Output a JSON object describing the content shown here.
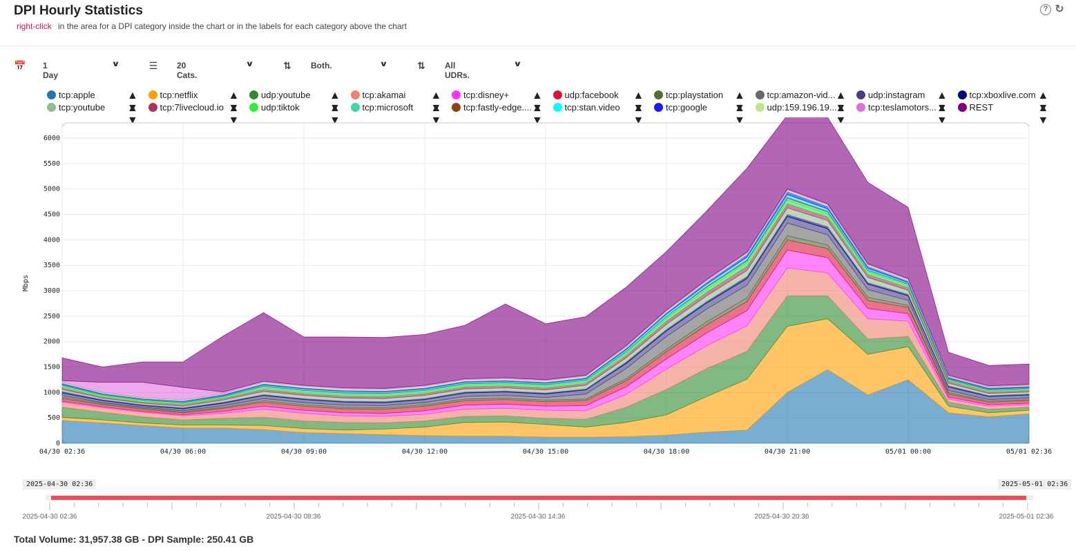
{
  "header": {
    "title": "DPI Hourly Statistics",
    "hint_action": "right-click",
    "hint_text": "in the area for a DPI category inside the chart or in the labels for each category above the chart"
  },
  "controls": {
    "period": "1 Day",
    "categories": "20 Cats.",
    "direction": "Both.",
    "udrs": "All UDRs."
  },
  "legend": [
    {
      "name": "tcp:apple",
      "color": "#1f77b4"
    },
    {
      "name": "tcp:netflix",
      "color": "#ff9f00"
    },
    {
      "name": "udp:youtube",
      "color": "#2e8b2e"
    },
    {
      "name": "tcp:akamai",
      "color": "#f08070"
    },
    {
      "name": "tcp:disney+",
      "color": "#ff33ff"
    },
    {
      "name": "udp:facebook",
      "color": "#dc143c"
    },
    {
      "name": "tcp:playstation",
      "color": "#556b2f"
    },
    {
      "name": "tcp:amazon-vid...",
      "color": "#696969"
    },
    {
      "name": "udp:instagram",
      "color": "#483d8b"
    },
    {
      "name": "tcp:xboxlive.com",
      "color": "#000080"
    },
    {
      "name": "tcp:youtube",
      "color": "#8fbc8f"
    },
    {
      "name": "tcp:7livecloud.io",
      "color": "#b03060"
    },
    {
      "name": "udp:tiktok",
      "color": "#32ee32"
    },
    {
      "name": "tcp:microsoft",
      "color": "#3cd8a0"
    },
    {
      "name": "tcp:fastly-edge....",
      "color": "#8b4513"
    },
    {
      "name": "tcp:stan.video",
      "color": "#00ffff"
    },
    {
      "name": "tcp:google",
      "color": "#1a1aff"
    },
    {
      "name": "udp:159.196.19...",
      "color": "#b8e986"
    },
    {
      "name": "tcp:teslamotors...",
      "color": "#e070e0"
    },
    {
      "name": "REST",
      "color": "#800080"
    }
  ],
  "chart_data": {
    "type": "area",
    "stacked": true,
    "ylabel": "Mbps",
    "ylim": [
      0,
      6300
    ],
    "yticks": [
      0,
      500,
      1000,
      1500,
      2000,
      2500,
      3000,
      3500,
      4000,
      4500,
      5000,
      5500,
      6000
    ],
    "xticks": [
      "04/30 02:36",
      "04/30 06:00",
      "04/30 09:00",
      "04/30 12:00",
      "04/30 15:00",
      "04/30 18:00",
      "04/30 21:00",
      "05/01 00:00",
      "05/01 02:36"
    ],
    "x": [
      "04/30 02:36",
      "04/30 03:36",
      "04/30 04:36",
      "04/30 05:36",
      "04/30 06:36",
      "04/30 07:36",
      "04/30 08:36",
      "04/30 09:36",
      "04/30 10:36",
      "04/30 11:36",
      "04/30 12:36",
      "04/30 13:36",
      "04/30 14:36",
      "04/30 15:36",
      "04/30 16:36",
      "04/30 17:36",
      "04/30 18:36",
      "04/30 19:36",
      "04/30 20:36",
      "04/30 21:36",
      "04/30 22:36",
      "04/30 23:36",
      "05/01 00:36",
      "05/01 01:36",
      "05/01 02:36"
    ],
    "grid": true,
    "series": [
      {
        "name": "tcp:apple",
        "values": [
          450,
          400,
          350,
          300,
          300,
          270,
          210,
          190,
          170,
          150,
          140,
          140,
          120,
          120,
          130,
          160,
          220,
          260,
          1000,
          1450,
          950,
          1250,
          600,
          520,
          580
        ]
      },
      {
        "name": "tcp:netflix",
        "values": [
          60,
          60,
          50,
          60,
          60,
          80,
          80,
          70,
          110,
          170,
          270,
          280,
          250,
          200,
          280,
          400,
          700,
          1000,
          1300,
          1000,
          800,
          650,
          130,
          80,
          70
        ]
      },
      {
        "name": "udp:youtube",
        "values": [
          200,
          150,
          120,
          100,
          130,
          160,
          150,
          150,
          120,
          120,
          120,
          120,
          120,
          150,
          300,
          500,
          550,
          550,
          600,
          450,
          300,
          200,
          80,
          70,
          60
        ]
      },
      {
        "name": "tcp:akamai",
        "values": [
          100,
          90,
          90,
          80,
          100,
          160,
          150,
          130,
          130,
          130,
          140,
          150,
          160,
          170,
          250,
          400,
          450,
          500,
          550,
          450,
          400,
          300,
          60,
          60,
          50
        ]
      },
      {
        "name": "tcp:disney+",
        "values": [
          20,
          20,
          20,
          20,
          40,
          60,
          60,
          60,
          60,
          70,
          80,
          80,
          80,
          100,
          150,
          200,
          250,
          300,
          350,
          300,
          200,
          150,
          40,
          30,
          30
        ]
      },
      {
        "name": "udp:facebook",
        "values": [
          50,
          40,
          40,
          40,
          60,
          80,
          80,
          80,
          80,
          90,
          90,
          90,
          90,
          100,
          120,
          140,
          160,
          180,
          200,
          180,
          160,
          120,
          60,
          50,
          50
        ]
      },
      {
        "name": "tcp:playstation",
        "values": [
          30,
          20,
          20,
          20,
          20,
          30,
          30,
          30,
          30,
          30,
          30,
          30,
          30,
          30,
          40,
          50,
          60,
          70,
          80,
          70,
          60,
          40,
          30,
          20,
          20
        ]
      },
      {
        "name": "tcp:amazon-vid...",
        "values": [
          30,
          20,
          20,
          20,
          30,
          40,
          40,
          40,
          40,
          40,
          50,
          50,
          50,
          100,
          200,
          250,
          250,
          250,
          250,
          200,
          150,
          100,
          40,
          30,
          30
        ]
      },
      {
        "name": "udp:instagram",
        "values": [
          50,
          40,
          30,
          40,
          50,
          60,
          60,
          60,
          60,
          60,
          70,
          70,
          70,
          80,
          100,
          110,
          120,
          130,
          130,
          120,
          110,
          90,
          70,
          60,
          60
        ]
      },
      {
        "name": "tcp:xboxlive.com",
        "values": [
          30,
          20,
          20,
          20,
          20,
          20,
          20,
          20,
          20,
          20,
          20,
          20,
          20,
          20,
          30,
          30,
          30,
          40,
          40,
          40,
          30,
          30,
          20,
          20,
          20
        ]
      },
      {
        "name": "tcp:youtube",
        "values": [
          40,
          30,
          30,
          30,
          40,
          60,
          60,
          60,
          60,
          60,
          60,
          60,
          60,
          70,
          80,
          100,
          110,
          120,
          130,
          120,
          100,
          80,
          50,
          40,
          40
        ]
      },
      {
        "name": "tcp:7livecloud.io",
        "values": [
          30,
          20,
          20,
          30,
          30,
          40,
          40,
          40,
          40,
          40,
          40,
          40,
          40,
          40,
          50,
          60,
          70,
          80,
          80,
          70,
          60,
          50,
          40,
          30,
          30
        ]
      },
      {
        "name": "udp:tiktok",
        "values": [
          20,
          20,
          20,
          20,
          20,
          30,
          30,
          30,
          30,
          30,
          30,
          30,
          30,
          30,
          40,
          50,
          60,
          70,
          70,
          60,
          50,
          40,
          20,
          20,
          20
        ]
      },
      {
        "name": "tcp:microsoft",
        "values": [
          30,
          20,
          20,
          20,
          20,
          30,
          30,
          30,
          30,
          30,
          30,
          30,
          30,
          30,
          30,
          40,
          40,
          40,
          40,
          40,
          30,
          30,
          20,
          20,
          20
        ]
      },
      {
        "name": "tcp:fastly-edge....",
        "values": [
          10,
          10,
          10,
          10,
          10,
          10,
          10,
          10,
          10,
          10,
          10,
          10,
          10,
          10,
          10,
          10,
          20,
          20,
          20,
          20,
          10,
          10,
          10,
          10,
          10
        ]
      },
      {
        "name": "tcp:stan.video",
        "values": [
          10,
          10,
          10,
          10,
          10,
          20,
          20,
          20,
          20,
          20,
          20,
          20,
          20,
          20,
          30,
          40,
          40,
          50,
          50,
          40,
          30,
          20,
          10,
          10,
          10
        ]
      },
      {
        "name": "tcp:google",
        "values": [
          20,
          10,
          10,
          10,
          20,
          20,
          20,
          20,
          20,
          20,
          20,
          20,
          20,
          20,
          30,
          30,
          40,
          50,
          60,
          50,
          40,
          30,
          20,
          20,
          20
        ]
      },
      {
        "name": "udp:159.196.19...",
        "values": [
          20,
          20,
          20,
          20,
          20,
          30,
          30,
          30,
          30,
          30,
          30,
          30,
          30,
          30,
          30,
          30,
          30,
          30,
          30,
          30,
          30,
          30,
          20,
          20,
          20
        ]
      },
      {
        "name": "tcp:teslamotors...",
        "values": [
          30,
          200,
          300,
          250,
          30,
          20,
          20,
          20,
          20,
          20,
          20,
          20,
          20,
          20,
          20,
          20,
          20,
          20,
          20,
          20,
          20,
          20,
          20,
          20,
          20
        ]
      },
      {
        "name": "REST",
        "values": [
          450,
          300,
          400,
          500,
          1100,
          1350,
          950,
          1000,
          1000,
          1000,
          1050,
          1450,
          1100,
          1150,
          1150,
          1150,
          1350,
          1650,
          1450,
          1700,
          1600,
          1400,
          450,
          400,
          400
        ]
      }
    ]
  },
  "navigator": {
    "start_box": "2025-04-30 02:36",
    "end_box": "2025-05-01 02:36",
    "labels": [
      "2025-04-30 02:36",
      "2025-04-30 08:36",
      "2025-04-30 14:36",
      "2025-04-30 20:36",
      "2025-05-01 02:36"
    ]
  },
  "footer": {
    "summary": "Total Volume: 31,957.38 GB - DPI Sample: 250.41 GB"
  }
}
